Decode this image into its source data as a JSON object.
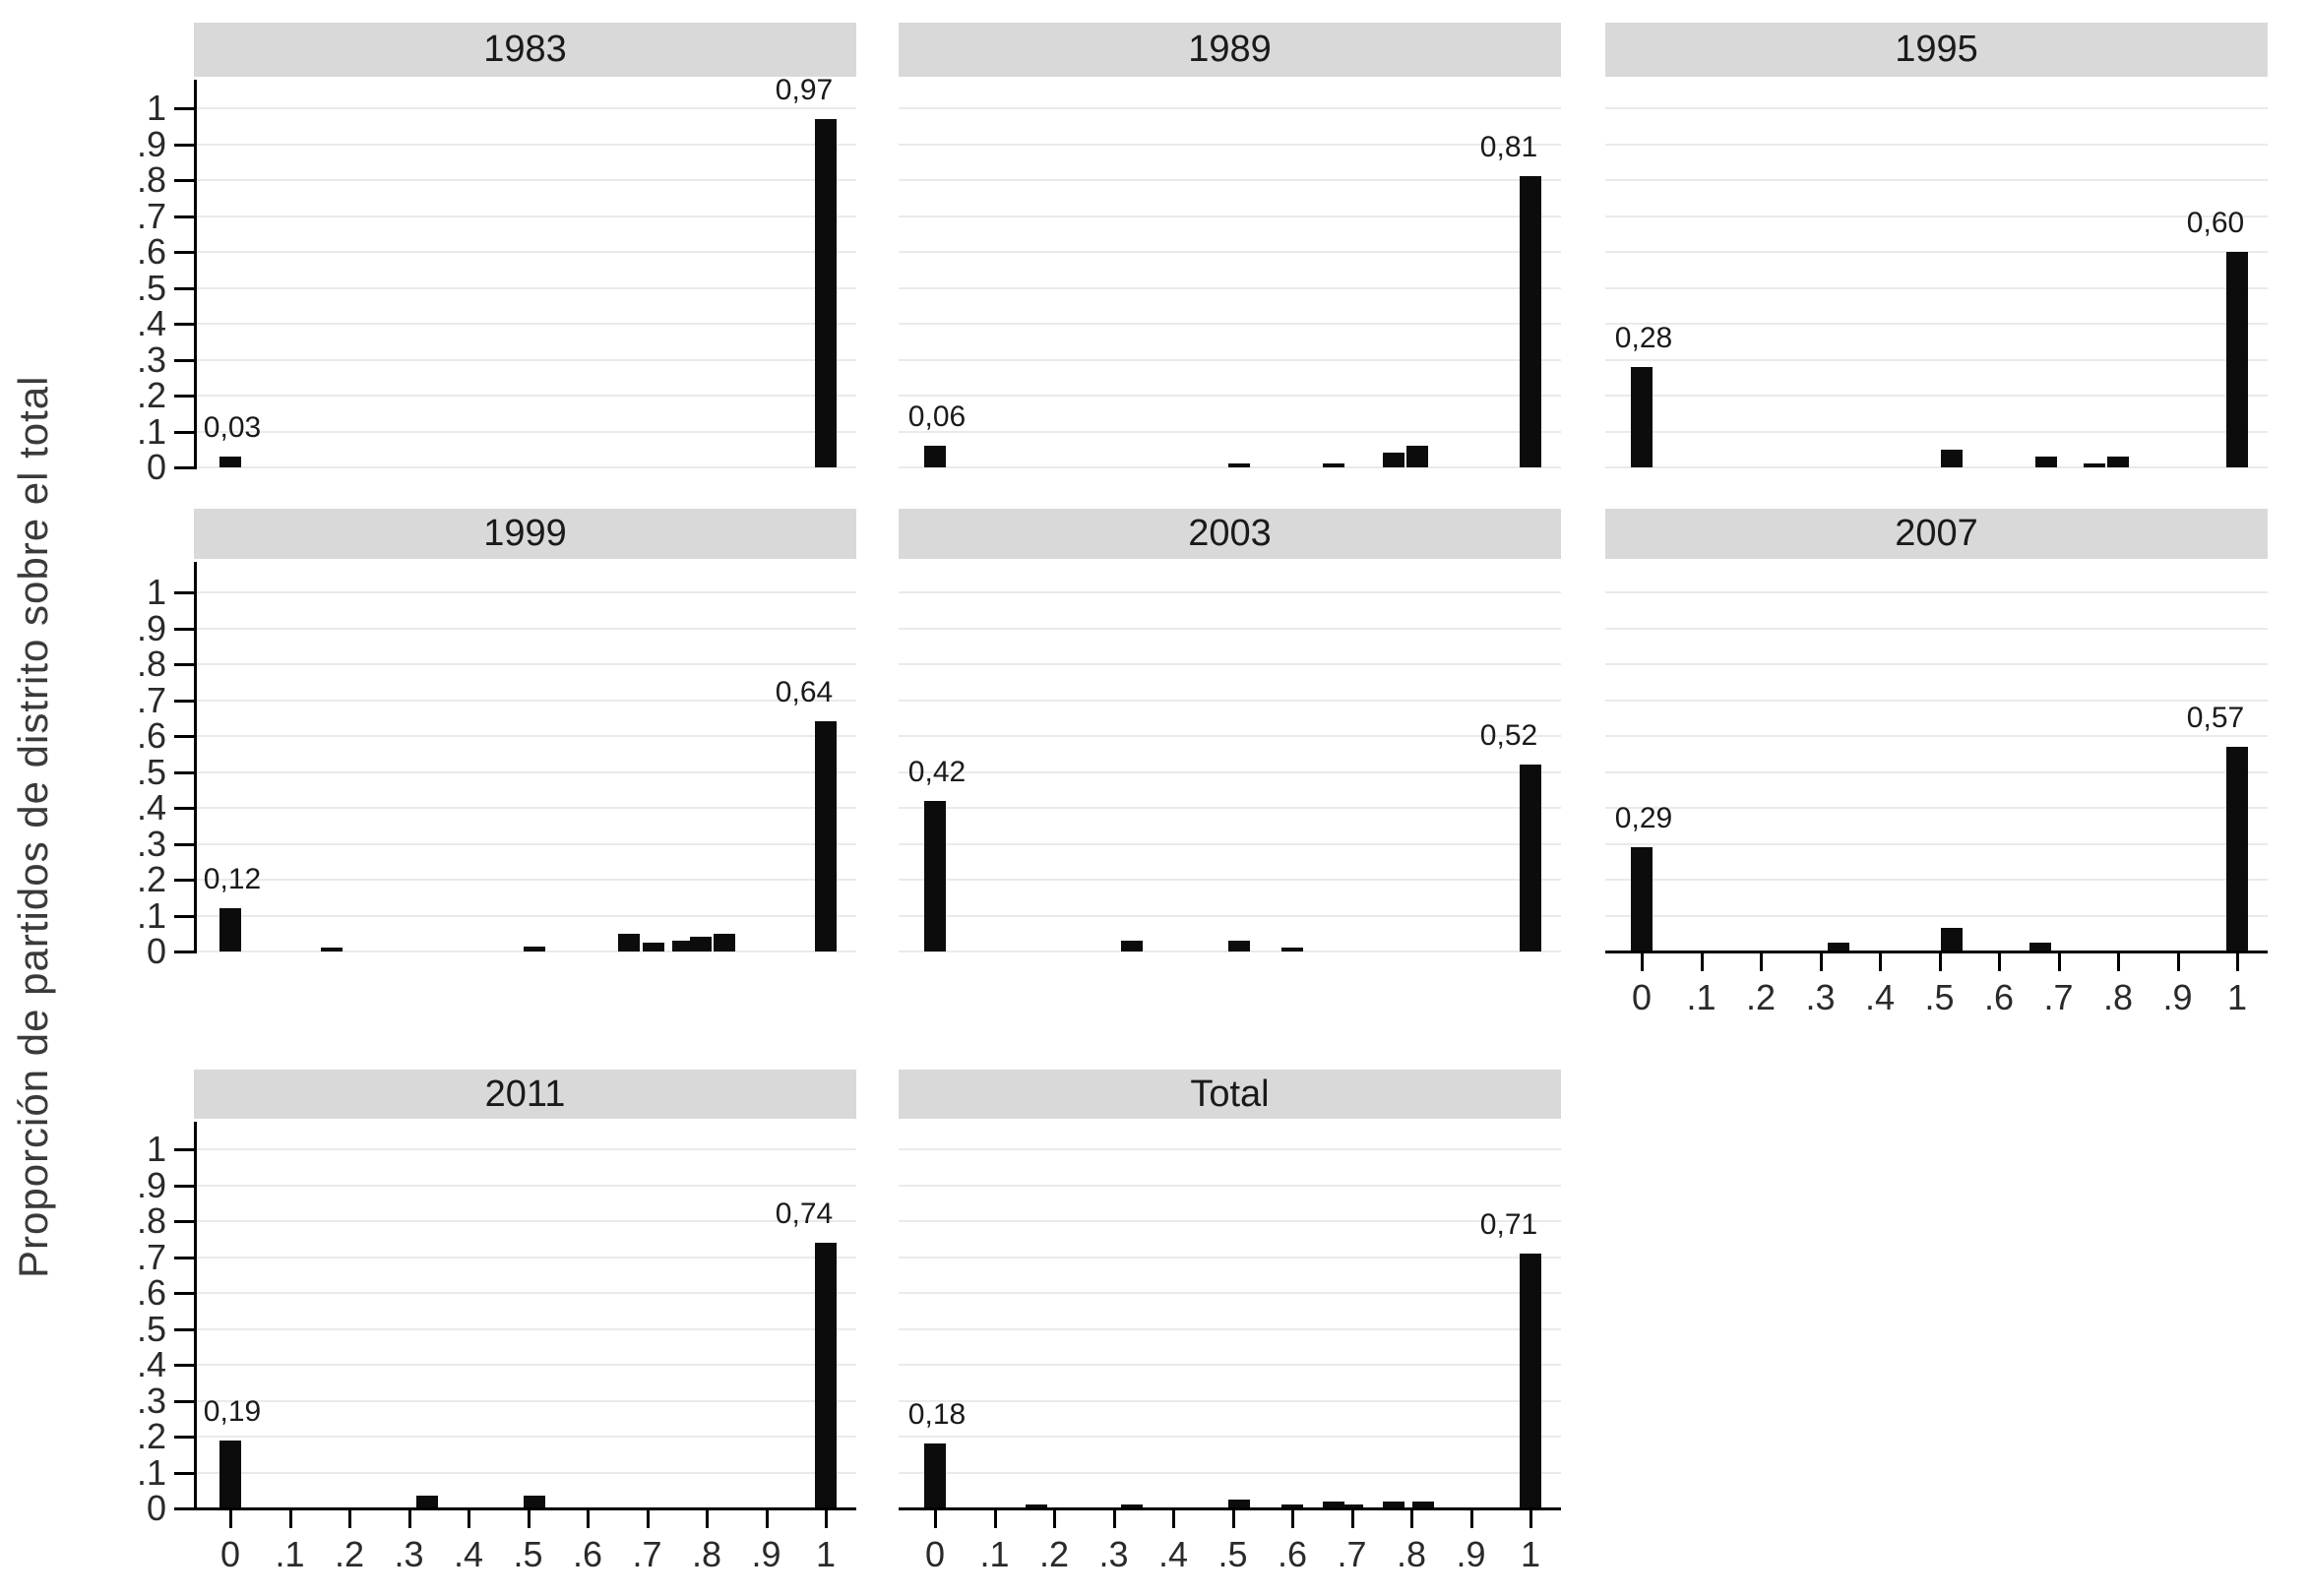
{
  "figure": {
    "ylabel": "Proporción de partidos de distrito sobre el total"
  },
  "colors": {
    "bar": "#0c0c0c",
    "header_bg": "#d9d9d9",
    "grid": "#eaeaea",
    "spine": "#000000",
    "text": "#1a1a1a",
    "background": "#ffffff"
  },
  "chart_data": {
    "type": "bar",
    "kind": "faceted-histogram",
    "title": "",
    "xlabel": "",
    "ylabel": "Proporción de partidos de distrito sobre el total",
    "xlim": [
      0,
      1
    ],
    "ylim": [
      0,
      1
    ],
    "grid": "horizontal",
    "legend": "none",
    "decimal_separator": ",",
    "x_ticks": [
      "0",
      ".1",
      ".2",
      ".3",
      ".4",
      ".5",
      ".6",
      ".7",
      ".8",
      ".9",
      "1"
    ],
    "y_ticks": [
      "0",
      ".1",
      ".2",
      ".3",
      ".4",
      ".5",
      ".6",
      ".7",
      ".8",
      ".9",
      "1"
    ],
    "panels": [
      {
        "title": "1983",
        "row": 0,
        "col": 0,
        "y_axis": true,
        "x_axis": false,
        "bars": [
          {
            "x": 0,
            "h": 0.03,
            "label": "0,03"
          },
          {
            "x": 1,
            "h": 0.97,
            "label": "0,97"
          }
        ]
      },
      {
        "title": "1989",
        "row": 0,
        "col": 1,
        "y_axis": false,
        "x_axis": false,
        "bars": [
          {
            "x": 0,
            "h": 0.06,
            "label": "0,06"
          },
          {
            "x": 0.51,
            "h": 0.012
          },
          {
            "x": 0.67,
            "h": 0.012
          },
          {
            "x": 0.77,
            "h": 0.04
          },
          {
            "x": 0.81,
            "h": 0.06
          },
          {
            "x": 1,
            "h": 0.81,
            "label": "0,81"
          }
        ]
      },
      {
        "title": "1995",
        "row": 0,
        "col": 2,
        "y_axis": false,
        "x_axis": false,
        "bars": [
          {
            "x": 0,
            "h": 0.28,
            "label": "0,28"
          },
          {
            "x": 0.52,
            "h": 0.05
          },
          {
            "x": 0.68,
            "h": 0.03
          },
          {
            "x": 0.76,
            "h": 0.012
          },
          {
            "x": 0.8,
            "h": 0.03
          },
          {
            "x": 1,
            "h": 0.6,
            "label": "0,60"
          }
        ]
      },
      {
        "title": "1999",
        "row": 1,
        "col": 0,
        "y_axis": true,
        "x_axis": false,
        "bars": [
          {
            "x": 0,
            "h": 0.12,
            "label": "0,12"
          },
          {
            "x": 0.17,
            "h": 0.012
          },
          {
            "x": 0.51,
            "h": 0.015
          },
          {
            "x": 0.67,
            "h": 0.05
          },
          {
            "x": 0.71,
            "h": 0.025
          },
          {
            "x": 0.76,
            "h": 0.03
          },
          {
            "x": 0.79,
            "h": 0.04
          },
          {
            "x": 0.83,
            "h": 0.05
          },
          {
            "x": 1,
            "h": 0.64,
            "label": "0,64"
          }
        ]
      },
      {
        "title": "2003",
        "row": 1,
        "col": 1,
        "y_axis": false,
        "x_axis": false,
        "bars": [
          {
            "x": 0,
            "h": 0.42,
            "label": "0,42"
          },
          {
            "x": 0.33,
            "h": 0.03
          },
          {
            "x": 0.51,
            "h": 0.03
          },
          {
            "x": 0.6,
            "h": 0.012
          },
          {
            "x": 1,
            "h": 0.52,
            "label": "0,52"
          }
        ]
      },
      {
        "title": "2007",
        "row": 1,
        "col": 2,
        "y_axis": false,
        "x_axis": true,
        "bars": [
          {
            "x": 0,
            "h": 0.29,
            "label": "0,29"
          },
          {
            "x": 0.33,
            "h": 0.025
          },
          {
            "x": 0.52,
            "h": 0.065
          },
          {
            "x": 0.67,
            "h": 0.025
          },
          {
            "x": 1,
            "h": 0.57,
            "label": "0,57"
          }
        ]
      },
      {
        "title": "2011",
        "row": 2,
        "col": 0,
        "y_axis": true,
        "x_axis": true,
        "bars": [
          {
            "x": 0,
            "h": 0.19,
            "label": "0,19"
          },
          {
            "x": 0.33,
            "h": 0.035
          },
          {
            "x": 0.51,
            "h": 0.035
          },
          {
            "x": 1,
            "h": 0.74,
            "label": "0,74"
          }
        ]
      },
      {
        "title": "Total",
        "row": 2,
        "col": 1,
        "y_axis": false,
        "x_axis": true,
        "bars": [
          {
            "x": 0,
            "h": 0.18,
            "label": "0,18"
          },
          {
            "x": 0.17,
            "h": 0.01
          },
          {
            "x": 0.33,
            "h": 0.01
          },
          {
            "x": 0.51,
            "h": 0.025
          },
          {
            "x": 0.6,
            "h": 0.01
          },
          {
            "x": 0.67,
            "h": 0.02
          },
          {
            "x": 0.7,
            "h": 0.01
          },
          {
            "x": 0.77,
            "h": 0.02
          },
          {
            "x": 0.82,
            "h": 0.02
          },
          {
            "x": 1,
            "h": 0.71,
            "label": "0,71"
          }
        ]
      }
    ]
  }
}
